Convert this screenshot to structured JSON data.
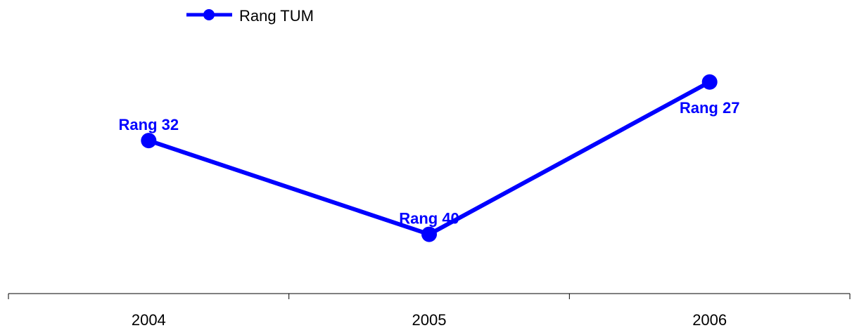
{
  "colors": {
    "series": "#0000ff",
    "axis": "#000000",
    "background": "#ffffff"
  },
  "chart_data": {
    "type": "line",
    "title": "",
    "xlabel": "",
    "ylabel": "",
    "categories": [
      "2004",
      "2005",
      "2006"
    ],
    "y_reversed": true,
    "ylim": [
      20,
      48
    ],
    "grid": false,
    "legend_position": "top-left",
    "series": [
      {
        "name": "Rang TUM",
        "values": [
          32,
          40,
          27
        ],
        "labels": [
          "Rang 32",
          "Rang 40",
          "Rang 27"
        ],
        "marker": "circle"
      }
    ]
  }
}
